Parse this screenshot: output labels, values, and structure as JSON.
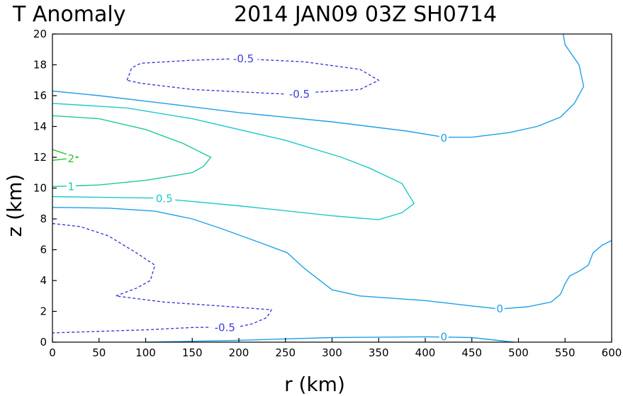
{
  "chart_data": {
    "type": "contour",
    "title_left": "T Anomaly",
    "title_right": "2014 JAN09 03Z   SH0714",
    "xlabel": "r (km)",
    "ylabel": "z (km)",
    "xlim": [
      0,
      600
    ],
    "ylim": [
      0,
      20
    ],
    "xticks": [
      0,
      50,
      100,
      150,
      200,
      250,
      300,
      350,
      400,
      450,
      500,
      550,
      600
    ],
    "yticks": [
      0,
      2,
      4,
      6,
      8,
      10,
      12,
      14,
      16,
      18,
      20
    ],
    "grid": false,
    "colors": {
      "neg": "#3c3cdc",
      "zero": "#1ea0e6",
      "p05": "#1ec8c8",
      "p1": "#1ec8a0",
      "p2": "#28c828"
    },
    "contours": [
      {
        "level": "-0.5",
        "color_key": "neg",
        "dashed": true,
        "points": [
          [
            80,
            17.0
          ],
          [
            85,
            17.8
          ],
          [
            95,
            18.1
          ],
          [
            150,
            18.3
          ],
          [
            200,
            18.4
          ],
          [
            270,
            18.2
          ],
          [
            330,
            17.7
          ],
          [
            350,
            17.0
          ],
          [
            330,
            16.4
          ],
          [
            250,
            16.1
          ],
          [
            150,
            16.4
          ],
          [
            95,
            16.8
          ],
          [
            80,
            17.0
          ]
        ],
        "labels": [
          {
            "text": "-0.5",
            "x": 205,
            "y": 18.4
          },
          {
            "text": "-0.5",
            "x": 265,
            "y": 16.1
          }
        ]
      },
      {
        "level": "-0.5",
        "color_key": "neg",
        "dashed": true,
        "points": [
          [
            0,
            7.7
          ],
          [
            30,
            7.5
          ],
          [
            60,
            6.9
          ],
          [
            90,
            5.8
          ],
          [
            110,
            5.0
          ],
          [
            105,
            4.0
          ],
          [
            90,
            3.5
          ],
          [
            68,
            3.0
          ],
          [
            120,
            2.6
          ],
          [
            180,
            2.35
          ],
          [
            235,
            2.1
          ],
          [
            230,
            1.6
          ],
          [
            215,
            1.2
          ],
          [
            200,
            1.0
          ],
          [
            150,
            0.95
          ],
          [
            100,
            0.8
          ],
          [
            0,
            0.6
          ]
        ],
        "labels": [
          {
            "text": "-0.5",
            "x": 185,
            "y": 0.95
          }
        ]
      },
      {
        "level": "0",
        "color_key": "zero",
        "dashed": false,
        "points": [
          [
            0,
            16.3
          ],
          [
            50,
            16.0
          ],
          [
            120,
            15.5
          ],
          [
            200,
            14.9
          ],
          [
            300,
            14.3
          ],
          [
            380,
            13.7
          ],
          [
            420,
            13.3
          ],
          [
            450,
            13.3
          ],
          [
            490,
            13.6
          ],
          [
            520,
            14.0
          ],
          [
            545,
            14.6
          ],
          [
            560,
            15.5
          ],
          [
            570,
            16.6
          ],
          [
            565,
            18.0
          ],
          [
            550,
            19.3
          ],
          [
            548,
            20.0
          ]
        ],
        "labels": [
          {
            "text": "0",
            "x": 420,
            "y": 13.25
          }
        ]
      },
      {
        "level": "0",
        "color_key": "zero",
        "dashed": false,
        "points": [
          [
            0,
            8.75
          ],
          [
            60,
            8.7
          ],
          [
            110,
            8.5
          ],
          [
            150,
            8.0
          ],
          [
            180,
            7.4
          ],
          [
            230,
            6.3
          ],
          [
            252,
            5.8
          ],
          [
            270,
            4.8
          ],
          [
            300,
            3.4
          ],
          [
            330,
            3.0
          ],
          [
            400,
            2.7
          ],
          [
            450,
            2.35
          ],
          [
            480,
            2.15
          ],
          [
            510,
            2.3
          ],
          [
            535,
            2.6
          ],
          [
            545,
            3.1
          ],
          [
            550,
            3.8
          ],
          [
            555,
            4.3
          ],
          [
            565,
            4.6
          ],
          [
            575,
            5.0
          ],
          [
            580,
            5.8
          ],
          [
            590,
            6.3
          ],
          [
            600,
            6.6
          ]
        ],
        "labels": [
          {
            "text": "0",
            "x": 480,
            "y": 2.15
          }
        ]
      },
      {
        "level": "0",
        "color_key": "zero",
        "dashed": false,
        "points": [
          [
            100,
            0.0
          ],
          [
            200,
            0.12
          ],
          [
            300,
            0.3
          ],
          [
            400,
            0.35
          ],
          [
            450,
            0.3
          ],
          [
            495,
            0.0
          ]
        ],
        "labels": [
          {
            "text": "0",
            "x": 420,
            "y": 0.35
          }
        ]
      },
      {
        "level": "0.5",
        "color_key": "p05",
        "dashed": false,
        "points": [
          [
            0,
            15.5
          ],
          [
            80,
            15.2
          ],
          [
            150,
            14.5
          ],
          [
            250,
            13.1
          ],
          [
            310,
            12.0
          ],
          [
            340,
            11.3
          ],
          [
            375,
            10.3
          ],
          [
            388,
            9.0
          ],
          [
            375,
            8.4
          ],
          [
            350,
            7.95
          ],
          [
            300,
            8.2
          ],
          [
            200,
            8.85
          ],
          [
            110,
            9.35
          ],
          [
            0,
            9.45
          ]
        ],
        "labels": [
          {
            "text": "0.5",
            "x": 120,
            "y": 9.3
          }
        ]
      },
      {
        "level": "1",
        "color_key": "p1",
        "dashed": false,
        "points": [
          [
            0,
            14.7
          ],
          [
            50,
            14.5
          ],
          [
            100,
            13.8
          ],
          [
            140,
            12.9
          ],
          [
            160,
            12.3
          ],
          [
            170,
            12.0
          ],
          [
            162,
            11.4
          ],
          [
            150,
            11.0
          ],
          [
            100,
            10.5
          ],
          [
            50,
            10.2
          ],
          [
            0,
            10.1
          ]
        ],
        "labels": [
          {
            "text": "1",
            "x": 20,
            "y": 10.1
          }
        ]
      },
      {
        "level": "2",
        "color_key": "p2",
        "dashed": false,
        "points": [
          [
            0,
            12.5
          ],
          [
            15,
            12.2
          ],
          [
            28,
            12.0
          ],
          [
            15,
            11.9
          ],
          [
            0,
            11.8
          ]
        ],
        "labels": [
          {
            "text": "2",
            "x": 20,
            "y": 11.9
          }
        ]
      }
    ]
  }
}
